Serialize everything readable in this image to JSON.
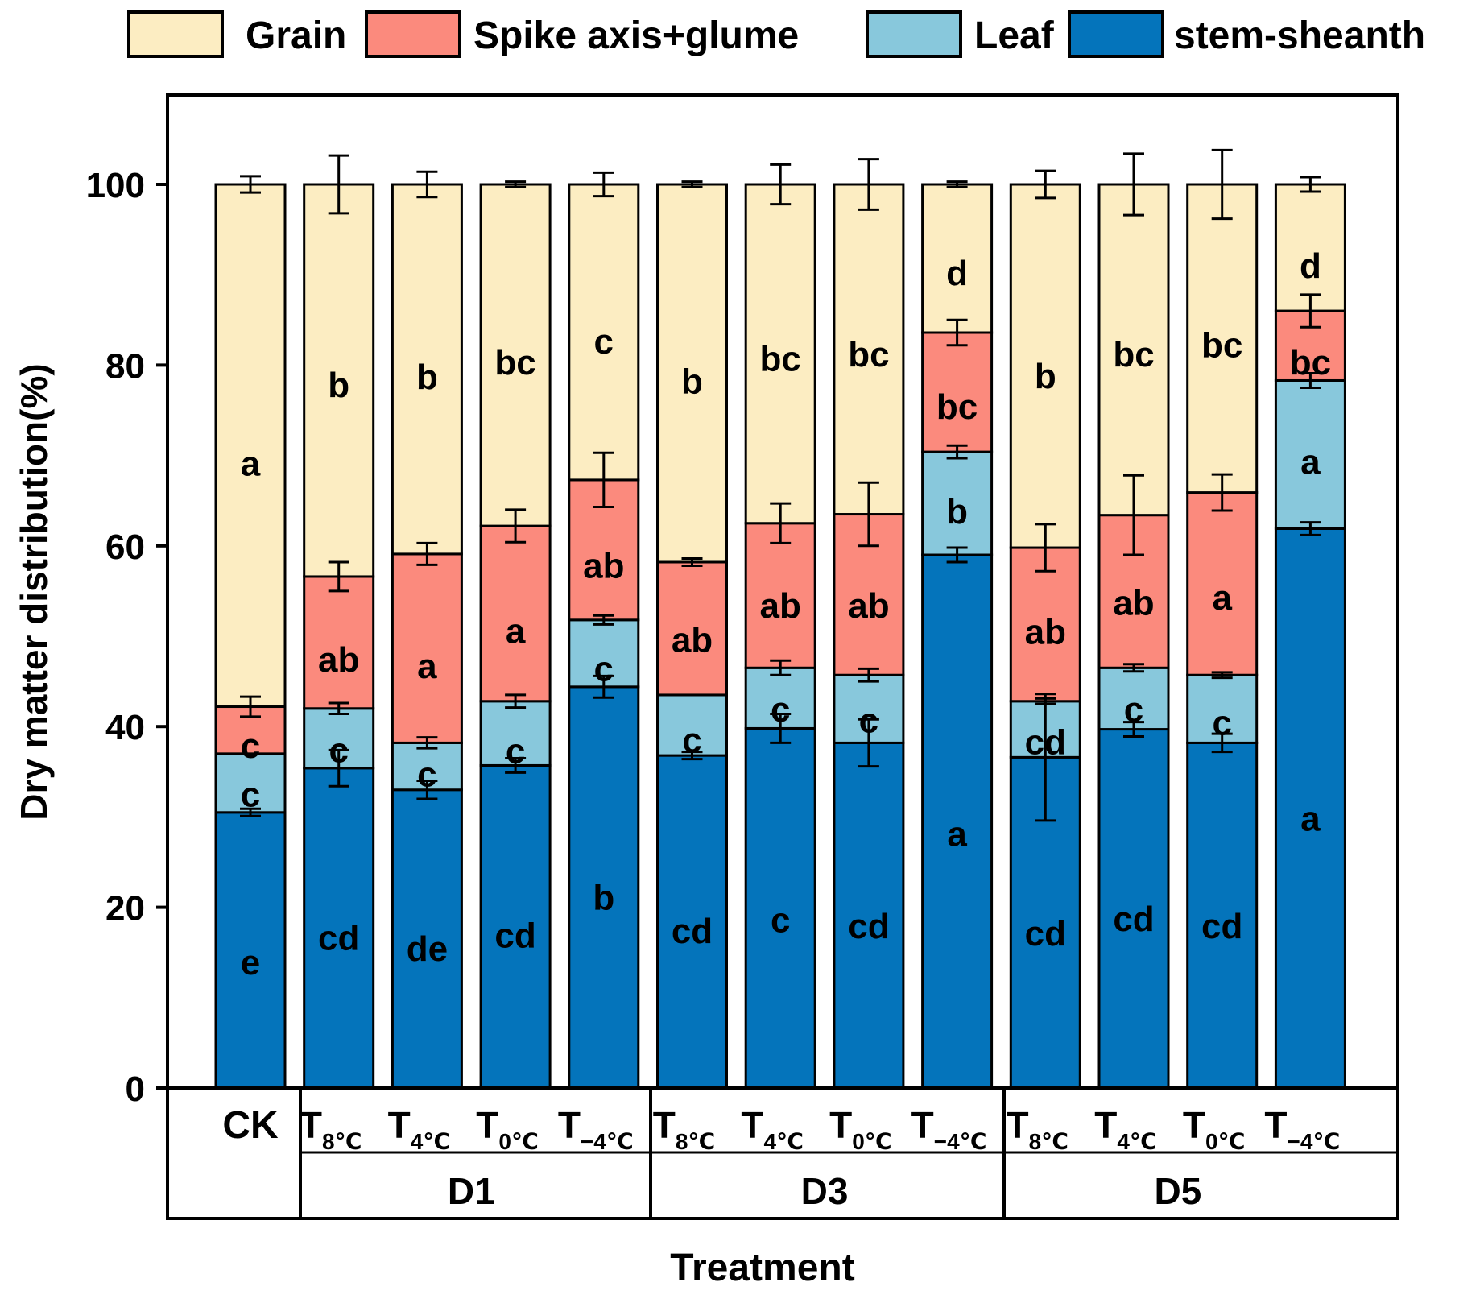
{
  "chart_data": {
    "type": "stacked-bar",
    "title": "",
    "xlabel": "Treatment",
    "ylabel": "Dry matter distribution(%)",
    "ylim": [
      0,
      110
    ],
    "yticks": [
      0,
      20,
      40,
      60,
      80,
      100
    ],
    "legend": {
      "placement": "top",
      "entries": [
        {
          "name": "Grain",
          "color": "#FCEDC2"
        },
        {
          "name": "Spike axis+glume",
          "color": "#FB8A7D"
        },
        {
          "name": "Leaf",
          "color": "#88C8DC"
        },
        {
          "name": "stem-sheanth",
          "color": "#0474BB"
        }
      ]
    },
    "categories": [
      {
        "label": "CK",
        "base": "",
        "sub": ""
      },
      {
        "label": "T8℃",
        "base": "T",
        "sub": "8℃"
      },
      {
        "label": "T4℃",
        "base": "T",
        "sub": "4℃"
      },
      {
        "label": "T0℃",
        "base": "T",
        "sub": "0℃"
      },
      {
        "label": "T−4℃",
        "base": "T",
        "sub": "−4℃"
      },
      {
        "label": "T8℃",
        "base": "T",
        "sub": "8℃"
      },
      {
        "label": "T4℃",
        "base": "T",
        "sub": "4℃"
      },
      {
        "label": "T0℃",
        "base": "T",
        "sub": "0℃"
      },
      {
        "label": "T−4℃",
        "base": "T",
        "sub": "−4℃"
      },
      {
        "label": "T8℃",
        "base": "T",
        "sub": "8℃"
      },
      {
        "label": "T4℃",
        "base": "T",
        "sub": "4℃"
      },
      {
        "label": "T0℃",
        "base": "T",
        "sub": "0℃"
      },
      {
        "label": "T−4℃",
        "base": "T",
        "sub": "−4℃"
      }
    ],
    "groups": [
      {
        "label": "CK",
        "from": 0,
        "to": 0
      },
      {
        "label": "D1",
        "from": 1,
        "to": 4
      },
      {
        "label": "D3",
        "from": 5,
        "to": 8
      },
      {
        "label": "D5",
        "from": 9,
        "to": 12
      }
    ],
    "series": [
      {
        "name": "stem-sheanth",
        "cumulative_top": [
          30.5,
          35.4,
          33.0,
          35.7,
          44.4,
          36.8,
          39.8,
          38.2,
          59.0,
          36.6,
          39.7,
          38.2,
          61.9
        ],
        "error": [
          0.4,
          2.0,
          1.0,
          0.8,
          1.2,
          0.4,
          1.6,
          2.6,
          0.8,
          7.0,
          0.8,
          1.0,
          0.7
        ],
        "letters": [
          "e",
          "cd",
          "de",
          "cd",
          "b",
          "cd",
          "c",
          "cd",
          "a",
          "cd",
          "cd",
          "cd",
          "a"
        ],
        "letter_pos": [
          13.9,
          16.6,
          15.4,
          16.9,
          21.1,
          17.4,
          18.6,
          17.9,
          28.1,
          17.1,
          18.7,
          17.9,
          29.8
        ]
      },
      {
        "name": "Leaf",
        "cumulative_top": [
          37.0,
          42.0,
          38.2,
          42.8,
          51.8,
          43.5,
          46.5,
          45.7,
          70.4,
          42.8,
          46.5,
          45.7,
          78.3
        ],
        "error": [
          0.0,
          0.6,
          0.6,
          0.7,
          0.5,
          0.0,
          0.8,
          0.7,
          0.7,
          0.3,
          0.4,
          0.3,
          0.8
        ],
        "letters": [
          "c",
          "c",
          "c",
          "c",
          "c",
          "c",
          "c",
          "c",
          "b",
          "cd",
          "c",
          "c",
          "a"
        ],
        "letter_pos": [
          32.5,
          37.4,
          34.7,
          37.3,
          46.4,
          38.5,
          41.9,
          40.7,
          63.8,
          38.3,
          41.9,
          40.4,
          69.3
        ]
      },
      {
        "name": "Spike axis+glume",
        "cumulative_top": [
          42.2,
          56.6,
          59.1,
          62.2,
          67.3,
          58.2,
          62.5,
          63.5,
          83.6,
          59.8,
          63.4,
          65.9,
          86.0
        ],
        "error": [
          1.1,
          1.6,
          1.2,
          1.8,
          3.0,
          0.4,
          2.2,
          3.5,
          1.4,
          2.6,
          4.4,
          2.0,
          1.8
        ],
        "letters": [
          "c",
          "ab",
          "a",
          "a",
          "ab",
          "ab",
          "ab",
          "ab",
          "bc",
          "ab",
          "ab",
          "a",
          "bc"
        ],
        "letter_pos": [
          37.9,
          47.4,
          46.7,
          50.6,
          57.8,
          49.6,
          53.4,
          53.4,
          75.4,
          50.5,
          53.7,
          54.3,
          80.3
        ]
      },
      {
        "name": "Grain",
        "cumulative_top": [
          100,
          100,
          100,
          100,
          100,
          100,
          100,
          100,
          100,
          100,
          100,
          100,
          100
        ],
        "error": [
          0.9,
          3.2,
          1.4,
          0.3,
          1.3,
          0.3,
          2.2,
          2.8,
          0.3,
          1.5,
          3.4,
          3.8,
          0.8
        ],
        "letters": [
          "a",
          "b",
          "b",
          "bc",
          "c",
          "b",
          "bc",
          "bc",
          "d",
          "b",
          "bc",
          "bc",
          "d"
        ],
        "letter_pos": [
          69.1,
          77.8,
          78.7,
          80.3,
          82.6,
          78.2,
          80.7,
          81.2,
          90.2,
          78.8,
          81.2,
          82.2,
          91.0
        ]
      }
    ]
  }
}
